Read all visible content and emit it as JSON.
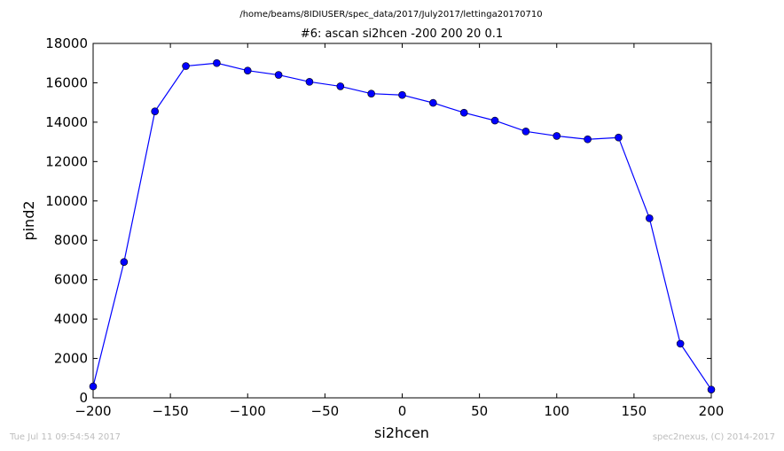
{
  "chart_data": {
    "type": "line",
    "suptitle": "/home/beams/8IDIUSER/spec_data/2017/July2017/lettinga20170710",
    "title": "#6: ascan  si2hcen -200 200  20 0.1",
    "xlabel": "si2hcen",
    "ylabel": "pind2",
    "xlim": [
      -200,
      200
    ],
    "ylim": [
      0,
      18000
    ],
    "xticks": [
      -200,
      -150,
      -100,
      -50,
      0,
      50,
      100,
      150,
      200
    ],
    "xtick_labels": [
      "−200",
      "−150",
      "−100",
      "−50",
      "0",
      "50",
      "100",
      "150",
      "200"
    ],
    "yticks": [
      0,
      2000,
      4000,
      6000,
      8000,
      10000,
      12000,
      14000,
      16000,
      18000
    ],
    "ytick_labels": [
      "0",
      "2000",
      "4000",
      "6000",
      "8000",
      "10000",
      "12000",
      "14000",
      "16000",
      "18000"
    ],
    "grid": false,
    "color": "#0000ff",
    "x": [
      -200,
      -180,
      -160,
      -140,
      -120,
      -100,
      -80,
      -60,
      -40,
      -20,
      0,
      20,
      40,
      60,
      80,
      100,
      120,
      140,
      160,
      180,
      200
    ],
    "y": [
      580,
      6900,
      14550,
      16850,
      17000,
      16620,
      16400,
      16050,
      15820,
      15450,
      15380,
      14980,
      14480,
      14080,
      13530,
      13300,
      13130,
      13220,
      9120,
      2750,
      420
    ]
  },
  "footer": {
    "timestamp": "Tue Jul 11 09:54:54 2017",
    "credit": "spec2nexus, (C) 2014-2017"
  }
}
